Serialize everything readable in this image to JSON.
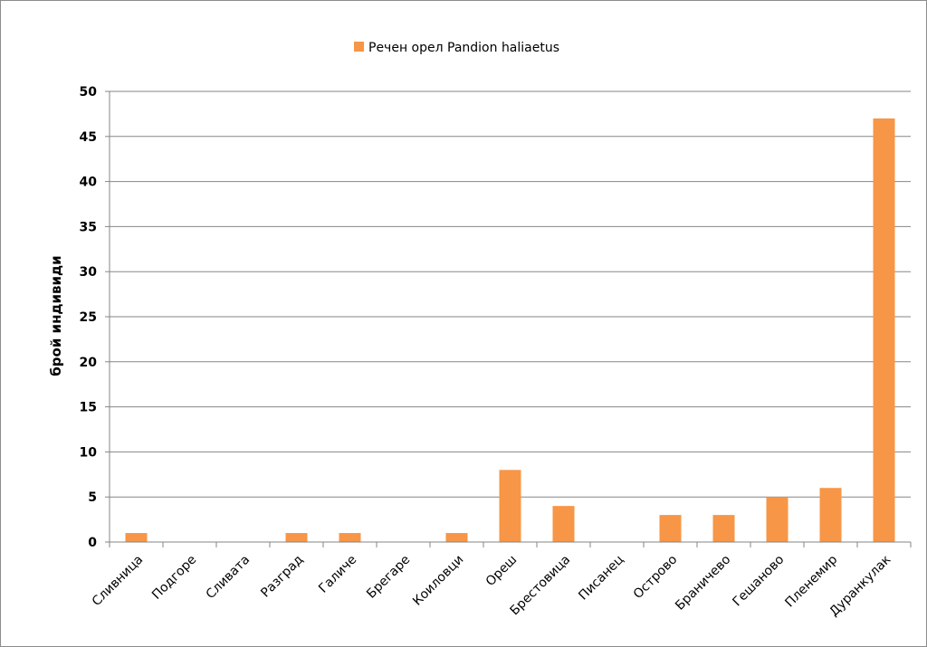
{
  "chart_data": {
    "type": "bar",
    "categories": [
      "Сливница",
      "Подгоре",
      "Сливата",
      "Разград",
      "Галиче",
      "Брегаре",
      "Коиловци",
      "Ореш",
      "Брестовица",
      "Писанец",
      "Острово",
      "Браничево",
      "Гешаново",
      "Пленемир",
      "Дуранкулак"
    ],
    "series": [
      {
        "name": "Речен орел Pandion haliaetus",
        "values": [
          1,
          0,
          0,
          1,
          1,
          0,
          1,
          8,
          4,
          0,
          3,
          3,
          5,
          6,
          47
        ]
      }
    ],
    "ylabel": "брой индивиди",
    "xlabel": "",
    "ylim": [
      0,
      50
    ],
    "yticks": [
      0,
      5,
      10,
      15,
      20,
      25,
      30,
      35,
      40,
      45,
      50
    ],
    "grid": true,
    "legend_position": "top",
    "bar_color": "#F79646",
    "gridline_color": "#868686"
  }
}
